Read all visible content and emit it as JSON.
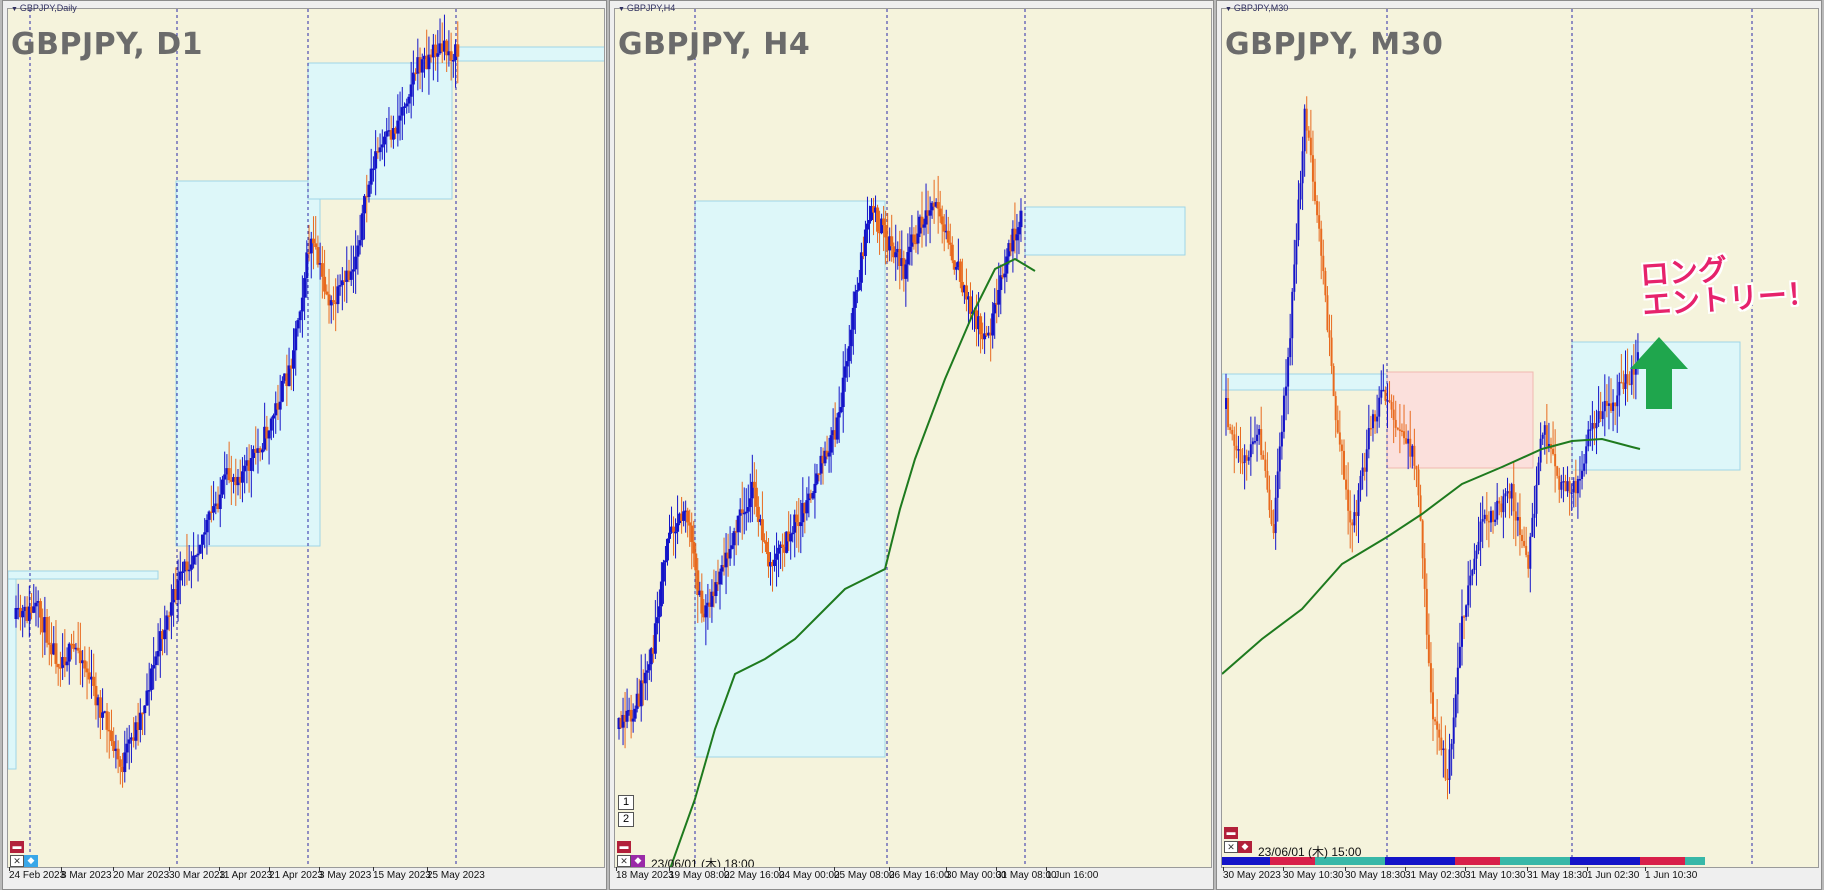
{
  "panels": [
    {
      "id": "d1",
      "small_label": "GBPJPY,Daily",
      "title": "GBPJPY, D1",
      "x_labels": [
        "24 Feb 2023",
        "8 Mar 2023",
        "20 Mar 2023",
        "30 Mar 2023",
        "11 Apr 2023",
        "21 Apr 2023",
        "3 May 2023",
        "15 May 2023",
        "25 May 2023"
      ]
    },
    {
      "id": "h4",
      "small_label": "GBPJPY,H4",
      "title": "GBPJPY, H4",
      "x_labels": [
        "18 May 2023",
        "19 May 08:00",
        "22 May 16:00",
        "24 May 00:00",
        "25 May 08:00",
        "26 May 16:00",
        "30 May 00:00",
        "31 May 08:00",
        "1 Jun 16:00"
      ],
      "cursor_time": "23/06/01 (木) 18:00",
      "stacked_buttons": [
        "1",
        "2"
      ]
    },
    {
      "id": "m30",
      "small_label": "GBPJPY,M30",
      "title": "GBPJPY, M30",
      "x_labels": [
        "30 May 2023",
        "30 May 10:30",
        "30 May 18:30",
        "31 May 02:30",
        "31 May 10:30",
        "31 May 18:30",
        "1 Jun 02:30",
        "1 Jun 10:30"
      ],
      "cursor_time": "23/06/01 (木) 15:00"
    }
  ],
  "annotation": {
    "line1": "ロング",
    "line2": "エントリー！",
    "arrow": "up-arrow-icon"
  },
  "colors": {
    "background": "#f5f3dc",
    "bull_candle": "#1414c8",
    "bear_candle": "#e86a1e",
    "zone_fill": "#ddf7f9",
    "zone_stroke": "#9fd6e6",
    "zone_red_fill": "#fbe0dc",
    "ma_line": "#1e7a1e",
    "arrow": "#1fa64d",
    "callout_text": "#e6226c"
  }
}
